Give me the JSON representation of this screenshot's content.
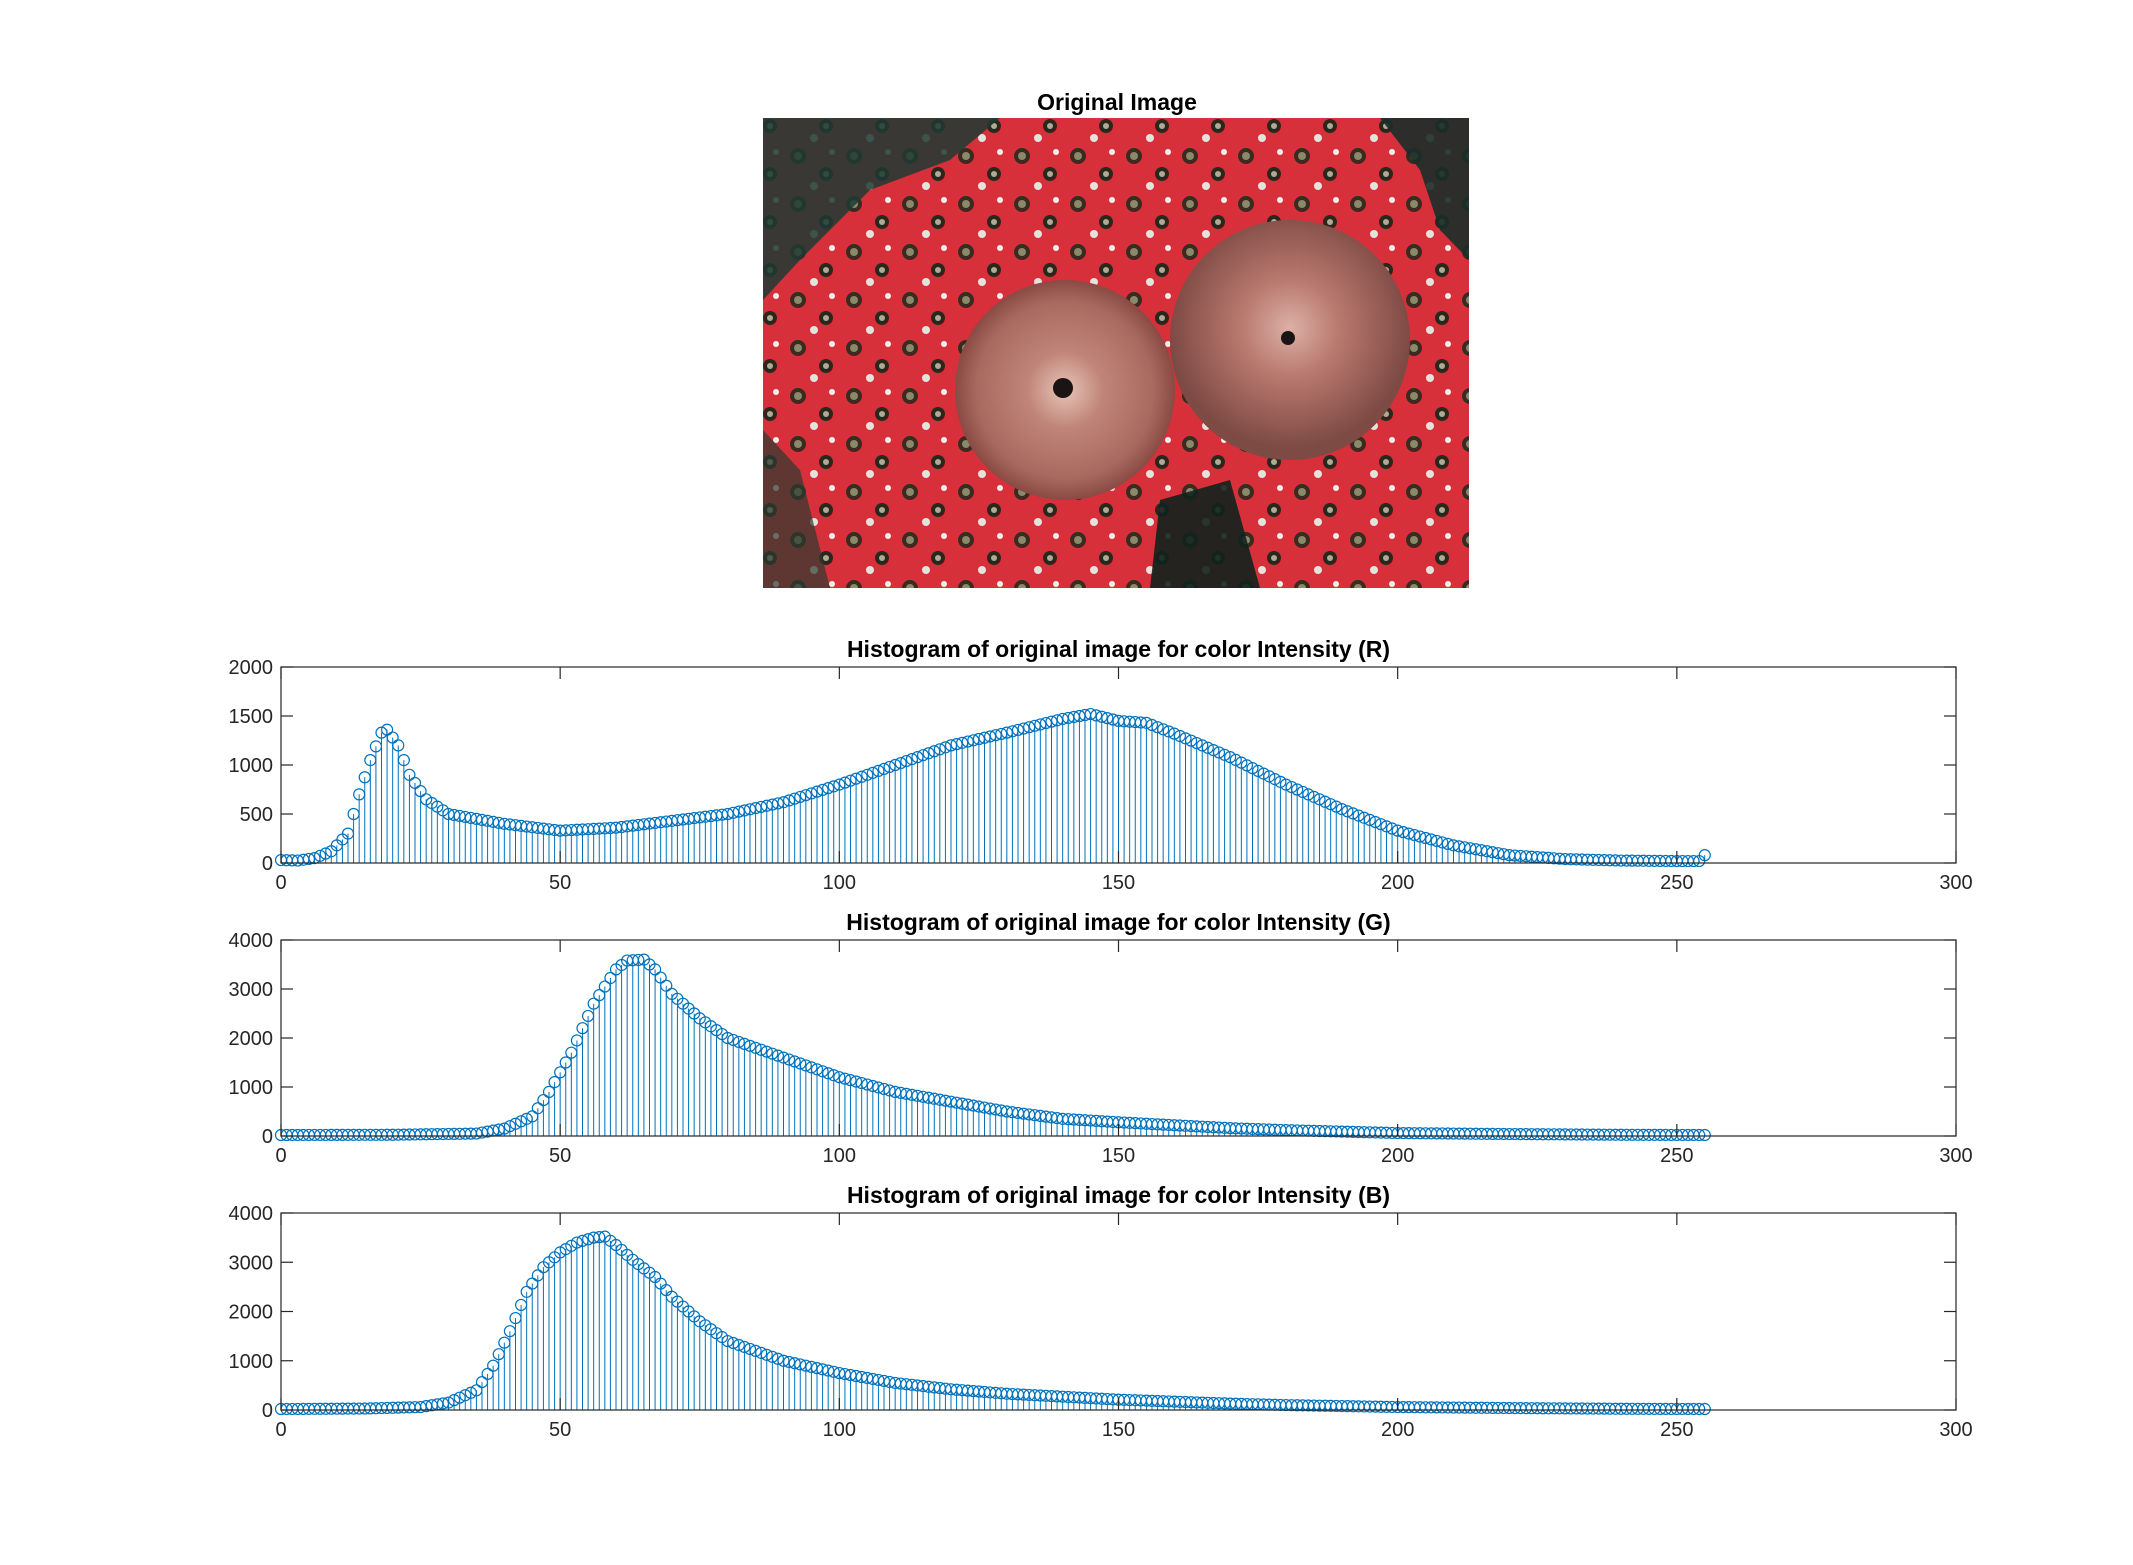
{
  "figure": {
    "image_title": "Original Image",
    "image_description_colors": {
      "background": "#d8303a",
      "dark": "#1f3a34",
      "worm": "#c98a7e"
    }
  },
  "chart_data": [
    {
      "type": "stem",
      "title": "Histogram of original image for color Intensity (R)",
      "xlim": [
        0,
        300
      ],
      "ylim": [
        0,
        2000
      ],
      "xticks": [
        0,
        50,
        100,
        150,
        200,
        250,
        300
      ],
      "yticks": [
        0,
        500,
        1000,
        1500,
        2000
      ],
      "color": "#0072bd",
      "x_range": [
        0,
        255
      ],
      "anchors": [
        [
          0,
          30
        ],
        [
          3,
          25
        ],
        [
          6,
          50
        ],
        [
          9,
          120
        ],
        [
          12,
          300
        ],
        [
          14,
          700
        ],
        [
          16,
          1050
        ],
        [
          18,
          1330
        ],
        [
          19,
          1360
        ],
        [
          21,
          1200
        ],
        [
          23,
          900
        ],
        [
          26,
          650
        ],
        [
          30,
          500
        ],
        [
          40,
          400
        ],
        [
          50,
          330
        ],
        [
          60,
          360
        ],
        [
          70,
          430
        ],
        [
          80,
          500
        ],
        [
          90,
          620
        ],
        [
          100,
          800
        ],
        [
          110,
          1000
        ],
        [
          120,
          1200
        ],
        [
          130,
          1330
        ],
        [
          140,
          1470
        ],
        [
          145,
          1520
        ],
        [
          150,
          1450
        ],
        [
          155,
          1430
        ],
        [
          160,
          1320
        ],
        [
          170,
          1080
        ],
        [
          180,
          800
        ],
        [
          190,
          550
        ],
        [
          200,
          330
        ],
        [
          210,
          180
        ],
        [
          220,
          80
        ],
        [
          230,
          40
        ],
        [
          240,
          25
        ],
        [
          250,
          20
        ],
        [
          254,
          20
        ],
        [
          255,
          80
        ]
      ]
    },
    {
      "type": "stem",
      "title": "Histogram of original image for color Intensity (G)",
      "xlim": [
        0,
        300
      ],
      "ylim": [
        0,
        4000
      ],
      "xticks": [
        0,
        50,
        100,
        150,
        200,
        250,
        300
      ],
      "yticks": [
        0,
        1000,
        2000,
        3000,
        4000
      ],
      "color": "#0072bd",
      "x_range": [
        0,
        255
      ],
      "anchors": [
        [
          0,
          20
        ],
        [
          20,
          25
        ],
        [
          35,
          50
        ],
        [
          40,
          150
        ],
        [
          45,
          400
        ],
        [
          48,
          900
        ],
        [
          52,
          1700
        ],
        [
          56,
          2700
        ],
        [
          60,
          3400
        ],
        [
          62,
          3580
        ],
        [
          65,
          3600
        ],
        [
          67,
          3400
        ],
        [
          70,
          2900
        ],
        [
          75,
          2400
        ],
        [
          80,
          2000
        ],
        [
          90,
          1600
        ],
        [
          100,
          1200
        ],
        [
          110,
          900
        ],
        [
          120,
          700
        ],
        [
          130,
          500
        ],
        [
          140,
          350
        ],
        [
          150,
          280
        ],
        [
          160,
          220
        ],
        [
          170,
          160
        ],
        [
          180,
          120
        ],
        [
          190,
          90
        ],
        [
          200,
          60
        ],
        [
          220,
          40
        ],
        [
          240,
          25
        ],
        [
          255,
          20
        ]
      ]
    },
    {
      "type": "stem",
      "title": "Histogram of original image for color Intensity (B)",
      "xlim": [
        0,
        300
      ],
      "ylim": [
        0,
        4000
      ],
      "xticks": [
        0,
        50,
        100,
        150,
        200,
        250,
        300
      ],
      "yticks": [
        0,
        1000,
        2000,
        3000,
        4000
      ],
      "color": "#0072bd",
      "x_range": [
        0,
        255
      ],
      "anchors": [
        [
          0,
          20
        ],
        [
          15,
          30
        ],
        [
          25,
          60
        ],
        [
          30,
          150
        ],
        [
          35,
          400
        ],
        [
          38,
          900
        ],
        [
          41,
          1600
        ],
        [
          44,
          2400
        ],
        [
          47,
          2900
        ],
        [
          50,
          3200
        ],
        [
          53,
          3400
        ],
        [
          56,
          3500
        ],
        [
          58,
          3520
        ],
        [
          60,
          3350
        ],
        [
          63,
          3050
        ],
        [
          67,
          2700
        ],
        [
          70,
          2300
        ],
        [
          75,
          1800
        ],
        [
          80,
          1400
        ],
        [
          90,
          1000
        ],
        [
          100,
          750
        ],
        [
          110,
          550
        ],
        [
          120,
          420
        ],
        [
          130,
          330
        ],
        [
          140,
          270
        ],
        [
          150,
          210
        ],
        [
          160,
          170
        ],
        [
          170,
          130
        ],
        [
          180,
          100
        ],
        [
          190,
          80
        ],
        [
          200,
          60
        ],
        [
          220,
          40
        ],
        [
          240,
          25
        ],
        [
          255,
          20
        ]
      ]
    }
  ]
}
